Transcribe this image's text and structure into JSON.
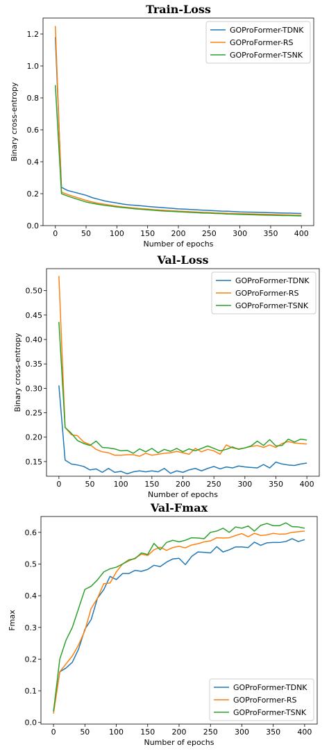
{
  "chart_data": [
    {
      "type": "line",
      "title": "Train-Loss",
      "xlabel": "Number of epochs",
      "ylabel": "Binary cross-entropy",
      "xlim": [
        -20,
        420
      ],
      "ylim": [
        0,
        1.3
      ],
      "xticks": [
        0,
        50,
        100,
        150,
        200,
        250,
        300,
        350,
        400
      ],
      "yticks": [
        0.0,
        0.2,
        0.4,
        0.6,
        0.8,
        1.0,
        1.2
      ],
      "ytick_labels": [
        "0.0",
        "0.2",
        "0.4",
        "0.6",
        "0.8",
        "1.0",
        "1.2"
      ],
      "legend": "top-right",
      "grid": false,
      "x": [
        0,
        10,
        20,
        30,
        40,
        50,
        60,
        70,
        80,
        90,
        100,
        110,
        120,
        130,
        140,
        150,
        160,
        170,
        180,
        190,
        200,
        210,
        220,
        230,
        240,
        250,
        260,
        270,
        280,
        290,
        300,
        310,
        320,
        330,
        340,
        350,
        360,
        370,
        380,
        390,
        400
      ],
      "series": [
        {
          "name": "GOProFormer-TDNK",
          "color": "#1f77b4",
          "values": [
            1.18,
            0.24,
            0.22,
            0.21,
            0.2,
            0.19,
            0.175,
            0.165,
            0.155,
            0.148,
            0.142,
            0.135,
            0.13,
            0.127,
            0.124,
            0.12,
            0.117,
            0.114,
            0.111,
            0.108,
            0.105,
            0.103,
            0.101,
            0.099,
            0.097,
            0.095,
            0.093,
            0.091,
            0.09,
            0.088,
            0.086,
            0.085,
            0.084,
            0.083,
            0.082,
            0.081,
            0.08,
            0.079,
            0.078,
            0.077,
            0.076
          ]
        },
        {
          "name": "GOProFormer-RS",
          "color": "#ff7f0e",
          "values": [
            1.25,
            0.21,
            0.195,
            0.182,
            0.17,
            0.158,
            0.148,
            0.14,
            0.134,
            0.128,
            0.122,
            0.117,
            0.113,
            0.109,
            0.106,
            0.103,
            0.1,
            0.098,
            0.095,
            0.093,
            0.091,
            0.089,
            0.087,
            0.085,
            0.083,
            0.082,
            0.08,
            0.079,
            0.077,
            0.076,
            0.075,
            0.074,
            0.073,
            0.072,
            0.071,
            0.07,
            0.069,
            0.068,
            0.067,
            0.066,
            0.065
          ]
        },
        {
          "name": "GOProFormer-TSNK",
          "color": "#2ca02c",
          "values": [
            0.88,
            0.2,
            0.185,
            0.172,
            0.16,
            0.148,
            0.14,
            0.133,
            0.127,
            0.122,
            0.117,
            0.113,
            0.109,
            0.105,
            0.102,
            0.099,
            0.096,
            0.093,
            0.091,
            0.089,
            0.087,
            0.085,
            0.083,
            0.081,
            0.079,
            0.078,
            0.076,
            0.075,
            0.073,
            0.072,
            0.07,
            0.069,
            0.068,
            0.067,
            0.066,
            0.065,
            0.064,
            0.063,
            0.063,
            0.062,
            0.061
          ]
        }
      ]
    },
    {
      "type": "line",
      "title": "Val-Loss",
      "xlabel": "Number of epochs",
      "ylabel": "Binary cross-entropy",
      "xlim": [
        -20,
        420
      ],
      "ylim": [
        0.12,
        0.545
      ],
      "xticks": [
        0,
        50,
        100,
        150,
        200,
        250,
        300,
        350,
        400
      ],
      "yticks": [
        0.15,
        0.2,
        0.25,
        0.3,
        0.35,
        0.4,
        0.45,
        0.5
      ],
      "ytick_labels": [
        "0.15",
        "0.20",
        "0.25",
        "0.30",
        "0.35",
        "0.40",
        "0.45",
        "0.50"
      ],
      "legend": "top-right",
      "grid": false,
      "x": [
        0,
        10,
        20,
        30,
        40,
        50,
        60,
        70,
        80,
        90,
        100,
        110,
        120,
        130,
        140,
        150,
        160,
        170,
        180,
        190,
        200,
        210,
        220,
        230,
        240,
        250,
        260,
        270,
        280,
        290,
        300,
        310,
        320,
        330,
        340,
        350,
        360,
        370,
        380,
        390,
        400
      ],
      "series": [
        {
          "name": "GOProFormer-TDNK",
          "color": "#1f77b4",
          "values": [
            0.306,
            0.153,
            0.145,
            0.143,
            0.14,
            0.133,
            0.135,
            0.128,
            0.136,
            0.128,
            0.13,
            0.125,
            0.129,
            0.131,
            0.129,
            0.131,
            0.129,
            0.136,
            0.126,
            0.131,
            0.128,
            0.133,
            0.136,
            0.131,
            0.136,
            0.14,
            0.135,
            0.139,
            0.137,
            0.141,
            0.139,
            0.138,
            0.137,
            0.144,
            0.137,
            0.149,
            0.145,
            0.143,
            0.142,
            0.145,
            0.147
          ]
        },
        {
          "name": "GOProFormer-RS",
          "color": "#ff7f0e",
          "values": [
            0.53,
            0.22,
            0.205,
            0.203,
            0.19,
            0.185,
            0.175,
            0.17,
            0.168,
            0.163,
            0.163,
            0.164,
            0.164,
            0.161,
            0.167,
            0.163,
            0.165,
            0.167,
            0.168,
            0.171,
            0.168,
            0.165,
            0.177,
            0.17,
            0.175,
            0.172,
            0.165,
            0.184,
            0.178,
            0.176,
            0.178,
            0.181,
            0.183,
            0.179,
            0.184,
            0.179,
            0.187,
            0.191,
            0.188,
            0.187,
            0.186
          ]
        },
        {
          "name": "GOProFormer-TSNK",
          "color": "#2ca02c",
          "values": [
            0.436,
            0.22,
            0.208,
            0.193,
            0.187,
            0.183,
            0.192,
            0.179,
            0.178,
            0.176,
            0.172,
            0.173,
            0.167,
            0.176,
            0.17,
            0.177,
            0.168,
            0.175,
            0.171,
            0.177,
            0.17,
            0.176,
            0.172,
            0.177,
            0.182,
            0.177,
            0.172,
            0.175,
            0.18,
            0.175,
            0.178,
            0.182,
            0.192,
            0.183,
            0.195,
            0.182,
            0.183,
            0.196,
            0.19,
            0.196,
            0.194
          ]
        }
      ]
    },
    {
      "type": "line",
      "title": "Val-Fmax",
      "xlabel": "Number of epochs",
      "ylabel": "Fmax",
      "xlim": [
        -20,
        420
      ],
      "ylim": [
        -0.005,
        0.65
      ],
      "xticks": [
        0,
        50,
        100,
        150,
        200,
        250,
        300,
        350,
        400
      ],
      "yticks": [
        0.0,
        0.1,
        0.2,
        0.3,
        0.4,
        0.5,
        0.6
      ],
      "ytick_labels": [
        "0.0",
        "0.1",
        "0.2",
        "0.3",
        "0.4",
        "0.5",
        "0.6"
      ],
      "legend": "bottom-right",
      "grid": false,
      "x": [
        0,
        10,
        20,
        30,
        40,
        50,
        60,
        70,
        80,
        90,
        100,
        110,
        120,
        130,
        140,
        150,
        160,
        170,
        180,
        190,
        200,
        210,
        220,
        230,
        240,
        250,
        260,
        270,
        280,
        290,
        300,
        310,
        320,
        330,
        340,
        350,
        360,
        370,
        380,
        390,
        400
      ],
      "series": [
        {
          "name": "GOProFormer-TDNK",
          "color": "#1f77b4",
          "values": [
            0.035,
            0.16,
            0.172,
            0.19,
            0.232,
            0.294,
            0.325,
            0.392,
            0.419,
            0.461,
            0.451,
            0.47,
            0.47,
            0.48,
            0.477,
            0.483,
            0.496,
            0.492,
            0.506,
            0.516,
            0.518,
            0.498,
            0.524,
            0.538,
            0.537,
            0.535,
            0.555,
            0.538,
            0.545,
            0.554,
            0.554,
            0.552,
            0.569,
            0.559,
            0.567,
            0.568,
            0.568,
            0.571,
            0.58,
            0.571,
            0.577
          ]
        },
        {
          "name": "GOProFormer-RS",
          "color": "#ff7f0e",
          "values": [
            0.028,
            0.16,
            0.185,
            0.21,
            0.245,
            0.29,
            0.36,
            0.392,
            0.438,
            0.44,
            0.475,
            0.5,
            0.51,
            0.519,
            0.531,
            0.527,
            0.545,
            0.553,
            0.543,
            0.552,
            0.556,
            0.551,
            0.56,
            0.564,
            0.57,
            0.573,
            0.583,
            0.582,
            0.583,
            0.59,
            0.596,
            0.586,
            0.597,
            0.59,
            0.592,
            0.597,
            0.594,
            0.595,
            0.6,
            0.602,
            0.604
          ]
        },
        {
          "name": "GOProFormer-TSNK",
          "color": "#2ca02c",
          "values": [
            0.035,
            0.2,
            0.26,
            0.3,
            0.36,
            0.42,
            0.43,
            0.45,
            0.475,
            0.485,
            0.49,
            0.5,
            0.513,
            0.517,
            0.535,
            0.53,
            0.565,
            0.545,
            0.568,
            0.575,
            0.57,
            0.575,
            0.583,
            0.582,
            0.58,
            0.6,
            0.604,
            0.613,
            0.6,
            0.617,
            0.613,
            0.62,
            0.604,
            0.622,
            0.628,
            0.621,
            0.621,
            0.63,
            0.618,
            0.617,
            0.613
          ]
        }
      ]
    }
  ]
}
